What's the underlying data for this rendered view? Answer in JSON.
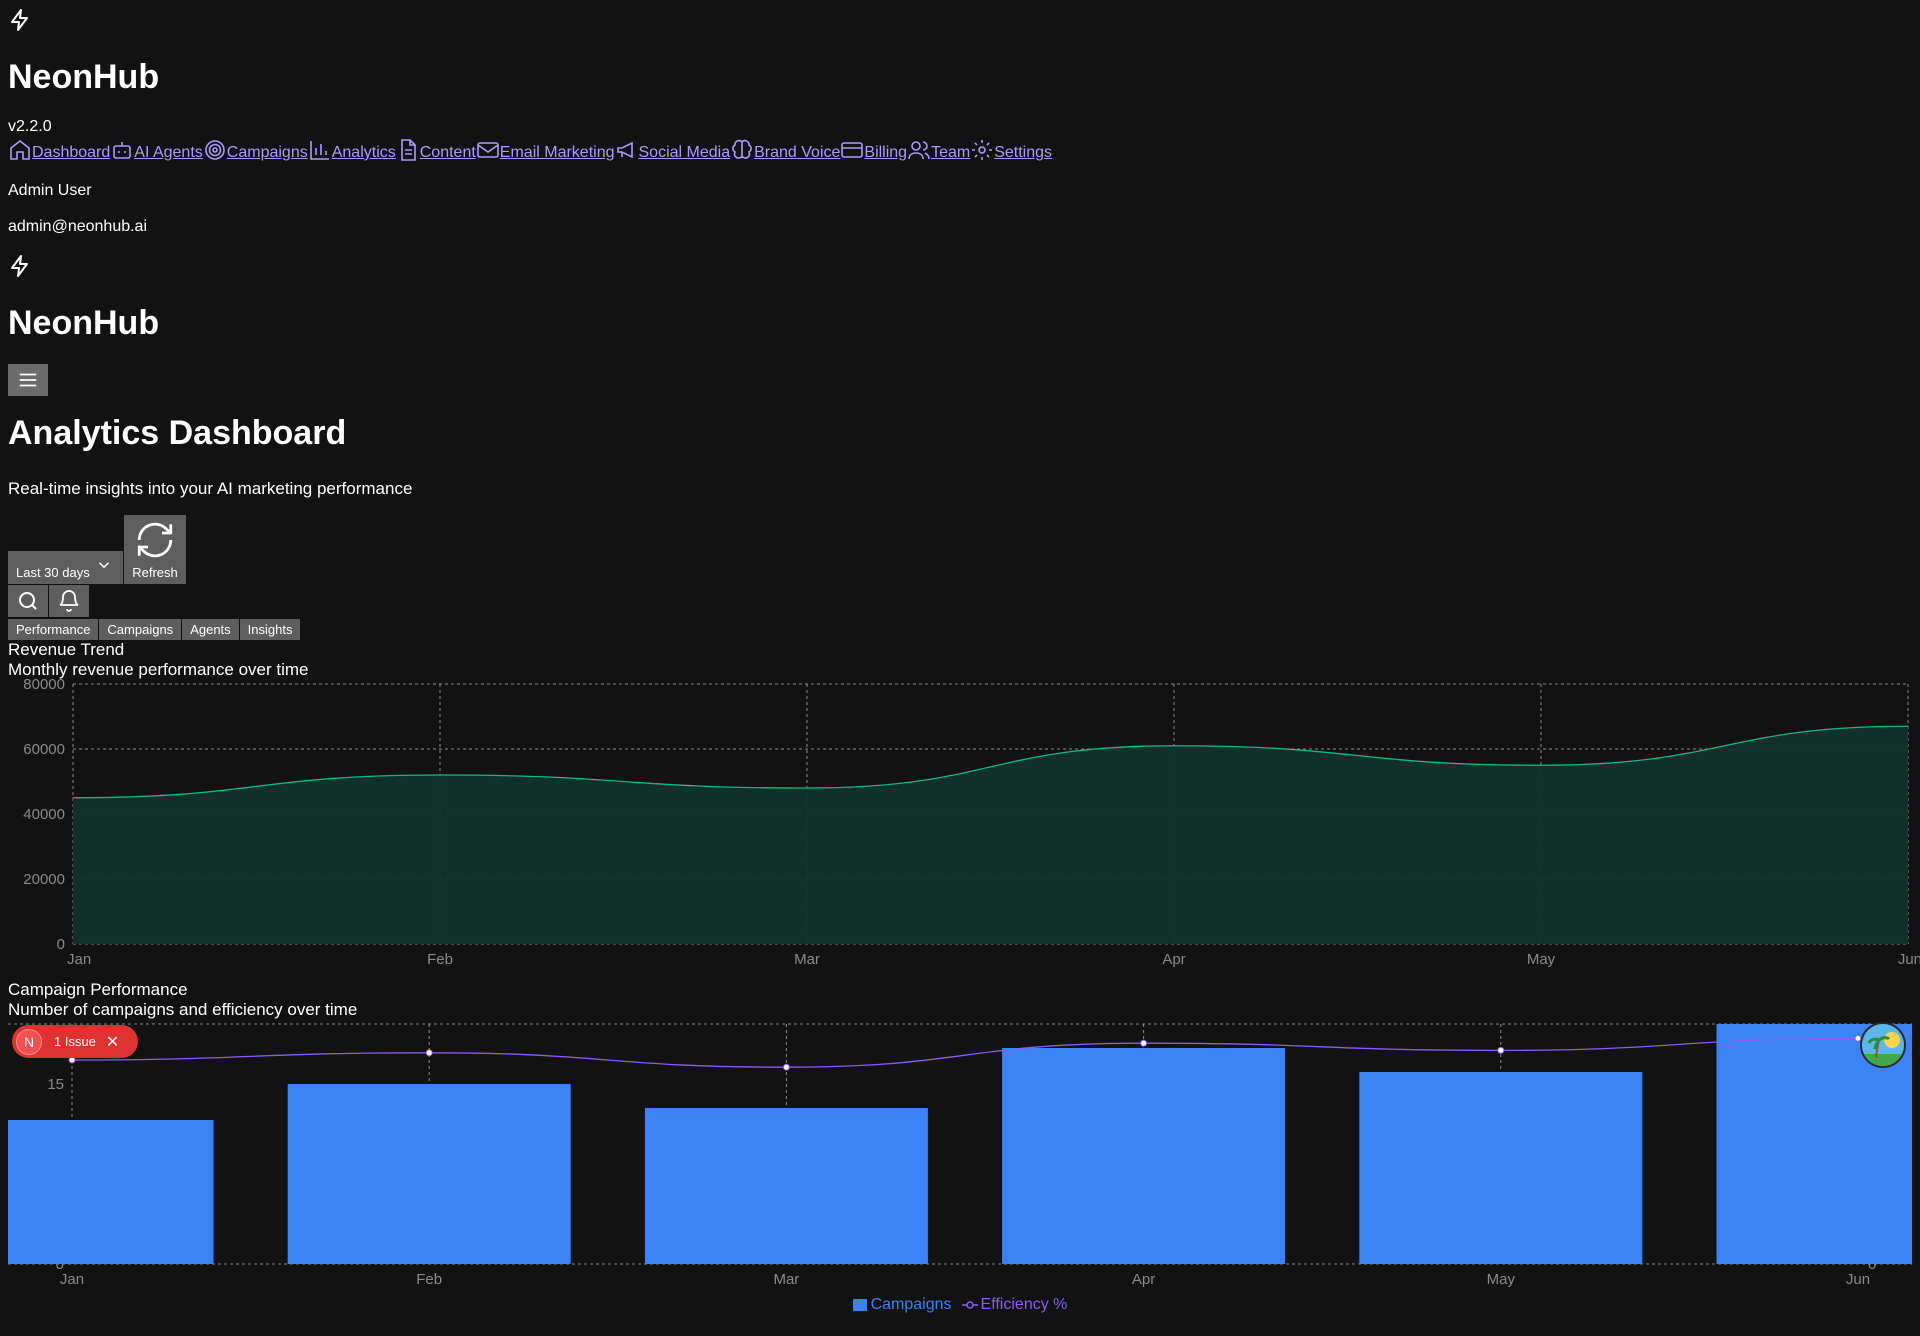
{
  "brand": {
    "name": "NeonHub",
    "version": "v2.2.0"
  },
  "nav": [
    {
      "label": "Dashboard",
      "icon": "home-icon"
    },
    {
      "label": "AI Agents",
      "icon": "bot-icon"
    },
    {
      "label": "Campaigns",
      "icon": "target-icon"
    },
    {
      "label": "Analytics",
      "icon": "bar-chart-icon"
    },
    {
      "label": "Content",
      "icon": "file-text-icon"
    },
    {
      "label": "Email Marketing",
      "icon": "mail-icon"
    },
    {
      "label": "Social Media",
      "icon": "megaphone-icon"
    },
    {
      "label": "Brand Voice",
      "icon": "brain-icon"
    },
    {
      "label": "Billing",
      "icon": "credit-card-icon"
    },
    {
      "label": "Team",
      "icon": "users-icon"
    },
    {
      "label": "Settings",
      "icon": "gear-icon"
    }
  ],
  "user": {
    "name": "Admin User",
    "email": "admin@neonhub.ai"
  },
  "page": {
    "title": "Analytics Dashboard",
    "subtitle": "Real-time insights into your AI marketing performance"
  },
  "controls": {
    "date_range": "Last 30 days",
    "refresh_label": "Refresh"
  },
  "tabs": [
    "Performance",
    "Campaigns",
    "Agents",
    "Insights"
  ],
  "issue_badge": {
    "initial": "N",
    "text": "1 Issue"
  },
  "colors": {
    "nav_link": "#a99cff",
    "revenue_line": "#10b981",
    "revenue_fill": "#12332b",
    "campaign_bar": "#3b82f6",
    "efficiency_line": "#8b5cf6",
    "issue_badge": "#e03131"
  },
  "chart_data": [
    {
      "type": "area",
      "title": "Revenue Trend",
      "subtitle": "Monthly revenue performance over time",
      "categories": [
        "Jan",
        "Feb",
        "Mar",
        "Apr",
        "May",
        "Jun"
      ],
      "series": [
        {
          "values": [
            45000,
            52000,
            48000,
            61000,
            55000,
            67000
          ]
        }
      ],
      "ylim": [
        0,
        80000
      ],
      "yticks": [
        0,
        20000,
        40000,
        60000,
        80000
      ],
      "grid": true
    },
    {
      "type": "bar",
      "title": "Campaign Performance",
      "subtitle": "Number of campaigns and efficiency over time",
      "categories": [
        "Jan",
        "Feb",
        "Mar",
        "Apr",
        "May",
        "Jun"
      ],
      "series": [
        {
          "name": "Campaigns",
          "type": "bar",
          "values": [
            12,
            15,
            13,
            18,
            16,
            20
          ]
        },
        {
          "name": "Efficiency %",
          "type": "line",
          "values": [
            85,
            88,
            82,
            92,
            89,
            94
          ]
        }
      ],
      "left_ylim": [
        0,
        20
      ],
      "left_yticks": [
        0,
        15
      ],
      "right_ylim": [
        0,
        100
      ],
      "right_yticks": [
        0
      ],
      "legend": "bottom-center",
      "grid": true
    }
  ]
}
